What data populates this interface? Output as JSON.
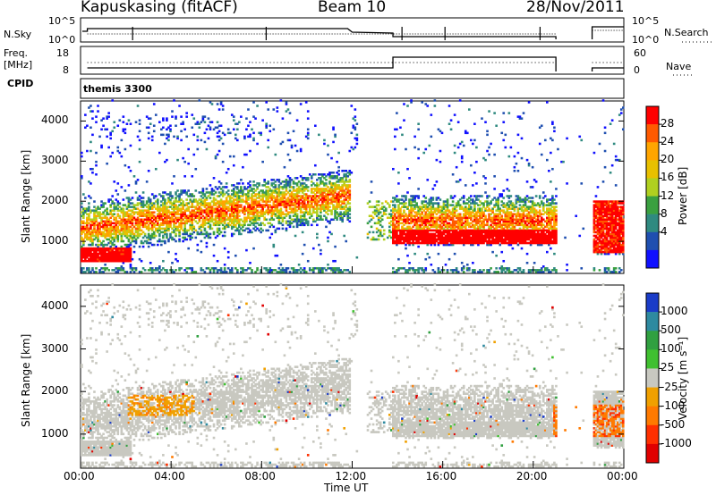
{
  "header": {
    "station": "Kapuskasing (fitACF)",
    "beam": "Beam 10",
    "date": "28/Nov/2011"
  },
  "status_panels": {
    "nsky_label": "N.Sky",
    "nsky_ticks": [
      "10^5",
      "10^0"
    ],
    "nsearch_label": "N.Search",
    "freq_label": "Freq.",
    "freq_unit": "[MHz]",
    "freq_ticks": [
      "18",
      "8"
    ],
    "nave_ticks": [
      "60",
      "0"
    ],
    "nave_label": "Nave",
    "cpid_label": "CPID",
    "cpid_value": "themis 3300"
  },
  "time_axis": {
    "title": "Time UT",
    "ticks": [
      "00:00",
      "04:00",
      "08:00",
      "12:00",
      "16:00",
      "20:00",
      "00:00"
    ]
  },
  "chart_data": [
    {
      "type": "heatmap",
      "name_id": "power-panel",
      "ylabel": "Slant Range [km]",
      "yticks": [
        "4000",
        "3000",
        "2000",
        "1000"
      ],
      "ylim": [
        200,
        4500
      ],
      "colorbar": {
        "label": "Power [dB]",
        "ticks": [
          "28",
          "24",
          "20",
          "16",
          "12",
          "8",
          "4"
        ],
        "colors": [
          "#ff0000",
          "#ff5a00",
          "#ffa500",
          "#e8c000",
          "#b0d020",
          "#3aa040",
          "#2f8a80",
          "#1f4fb0",
          "#1010ff"
        ]
      },
      "echo_regions": [
        {
          "t_start": 0.3,
          "t_end": 2.2,
          "r_min": 500,
          "r_max": 800,
          "power": "high"
        },
        {
          "t_start": 0.3,
          "t_end": 11.8,
          "r_min": 1000,
          "r_max": 2300,
          "power": "medium"
        },
        {
          "t_start": 13.8,
          "t_end": 21.0,
          "r_min": 900,
          "r_max": 2200,
          "power": "high"
        },
        {
          "t_start": 22.6,
          "t_end": 24.0,
          "r_min": 700,
          "r_max": 2000,
          "power": "high"
        }
      ]
    },
    {
      "type": "heatmap",
      "name_id": "velocity-panel",
      "ylabel": "Slant Range [km]",
      "yticks": [
        "4000",
        "3000",
        "2000",
        "1000"
      ],
      "ylim": [
        200,
        4500
      ],
      "colorbar": {
        "label": "Velocity [m s⁻¹]",
        "ticks": [
          "1000",
          "500",
          "100",
          "25",
          "-25",
          "-100",
          "-500",
          "-1000"
        ],
        "colors": [
          "#1a3cc8",
          "#2e8aa0",
          "#30a040",
          "#40c030",
          "#c8c8c0",
          "#f0a000",
          "#ff7a00",
          "#ff3000",
          "#e00000"
        ]
      }
    }
  ]
}
